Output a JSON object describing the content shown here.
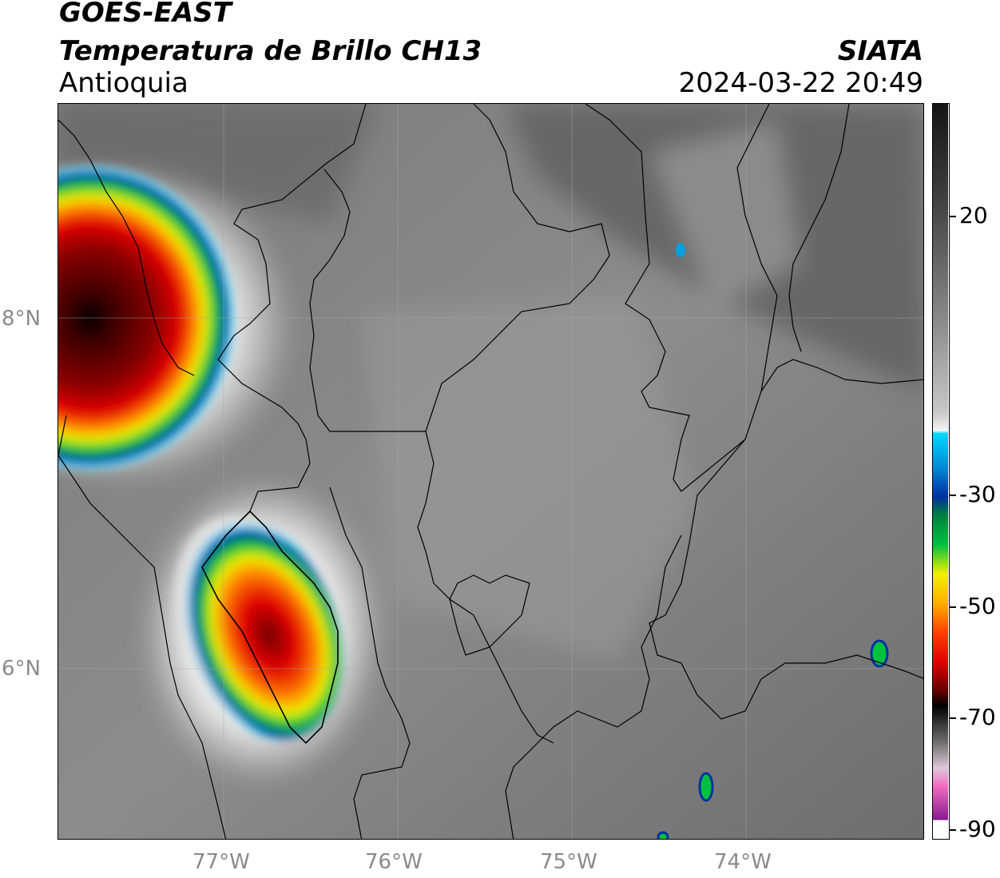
{
  "header": {
    "satellite": "GOES-EAST",
    "product": "Temperatura de Brillo CH13",
    "region": "Antioquia",
    "organization": "SIATA",
    "timestamp": "2024-03-22 20:49"
  },
  "map": {
    "lat_labels": [
      "8°N",
      "6°N"
    ],
    "lon_labels": [
      "77°W",
      "76°W",
      "75°W",
      "74°W"
    ]
  },
  "colorbar": {
    "ticks": [
      "20",
      "-30",
      "-50",
      "-70",
      "-90"
    ],
    "colors": {
      "warm_dark": "#151515",
      "mid_gray": "#8c8c8c",
      "light": "#f4f4f4",
      "cyan": "#00d8ff",
      "blue": "#0030a0",
      "green": "#00c040",
      "yellow": "#f0f000",
      "orange": "#ff8000",
      "red": "#e00000",
      "dark_red": "#600000",
      "black": "#000000",
      "pink": "#f06ac0",
      "purple": "#8a1a90"
    }
  }
}
